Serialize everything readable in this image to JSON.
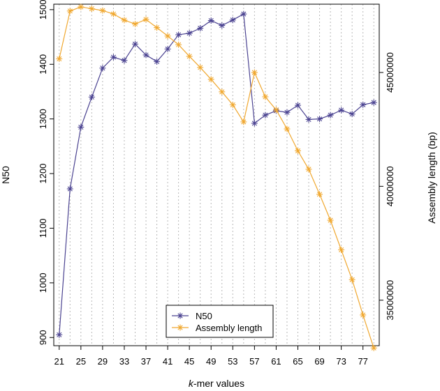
{
  "chart_data": {
    "type": "line",
    "xlabel_italic": "k",
    "xlabel_rest": "-mer values",
    "ylabel_left": "N50",
    "ylabel_right": "Assembly length (bp)",
    "x": [
      21,
      23,
      25,
      27,
      29,
      31,
      33,
      35,
      37,
      39,
      41,
      43,
      45,
      47,
      49,
      51,
      53,
      55,
      57,
      59,
      61,
      63,
      65,
      67,
      69,
      71,
      73,
      75,
      77,
      79
    ],
    "x_ticks": [
      21,
      25,
      29,
      33,
      37,
      41,
      45,
      49,
      53,
      57,
      61,
      65,
      69,
      73,
      77
    ],
    "x_tick_labels": [
      "21",
      "25",
      "29",
      "33",
      "37",
      "41",
      "45",
      "49",
      "53",
      "57",
      "61",
      "65",
      "69",
      "73",
      "77"
    ],
    "xlim": [
      20,
      80
    ],
    "left_ylim": [
      885,
      1510
    ],
    "left_ticks": [
      900,
      1000,
      1100,
      1200,
      1300,
      1400,
      1500
    ],
    "left_tick_labels": [
      "900",
      "1000",
      "1100",
      "1200",
      "1300",
      "1400",
      "1500"
    ],
    "right_ylim": [
      33000000,
      48000000
    ],
    "right_ticks": [
      35000000,
      40000000,
      45000000
    ],
    "right_tick_labels": [
      "35000000",
      "40000000",
      "45000000"
    ],
    "grid": "vertical-dotted",
    "legend_position": "bottom-center",
    "series": [
      {
        "name": "N50",
        "axis": "left",
        "color": "#4b4391",
        "marker": "asterisk",
        "values": [
          905,
          1172,
          1285,
          1340,
          1393,
          1413,
          1407,
          1437,
          1417,
          1405,
          1428,
          1454,
          1457,
          1466,
          1480,
          1471,
          1481,
          1492,
          1292,
          1307,
          1315,
          1312,
          1325,
          1299,
          1300,
          1307,
          1316,
          1309,
          1326,
          1330
        ]
      },
      {
        "name": "Assembly length",
        "axis": "right",
        "color": "#f0a830",
        "marker": "asterisk",
        "values": [
          45600000,
          47700000,
          47880000,
          47800000,
          47720000,
          47570000,
          47300000,
          47130000,
          47330000,
          46970000,
          46600000,
          46220000,
          45710000,
          45220000,
          44700000,
          44150000,
          43580000,
          42830000,
          45000000,
          43930000,
          43360000,
          42520000,
          41560000,
          40750000,
          39650000,
          38510000,
          37210000,
          35900000,
          34350000,
          32900000
        ]
      }
    ]
  }
}
